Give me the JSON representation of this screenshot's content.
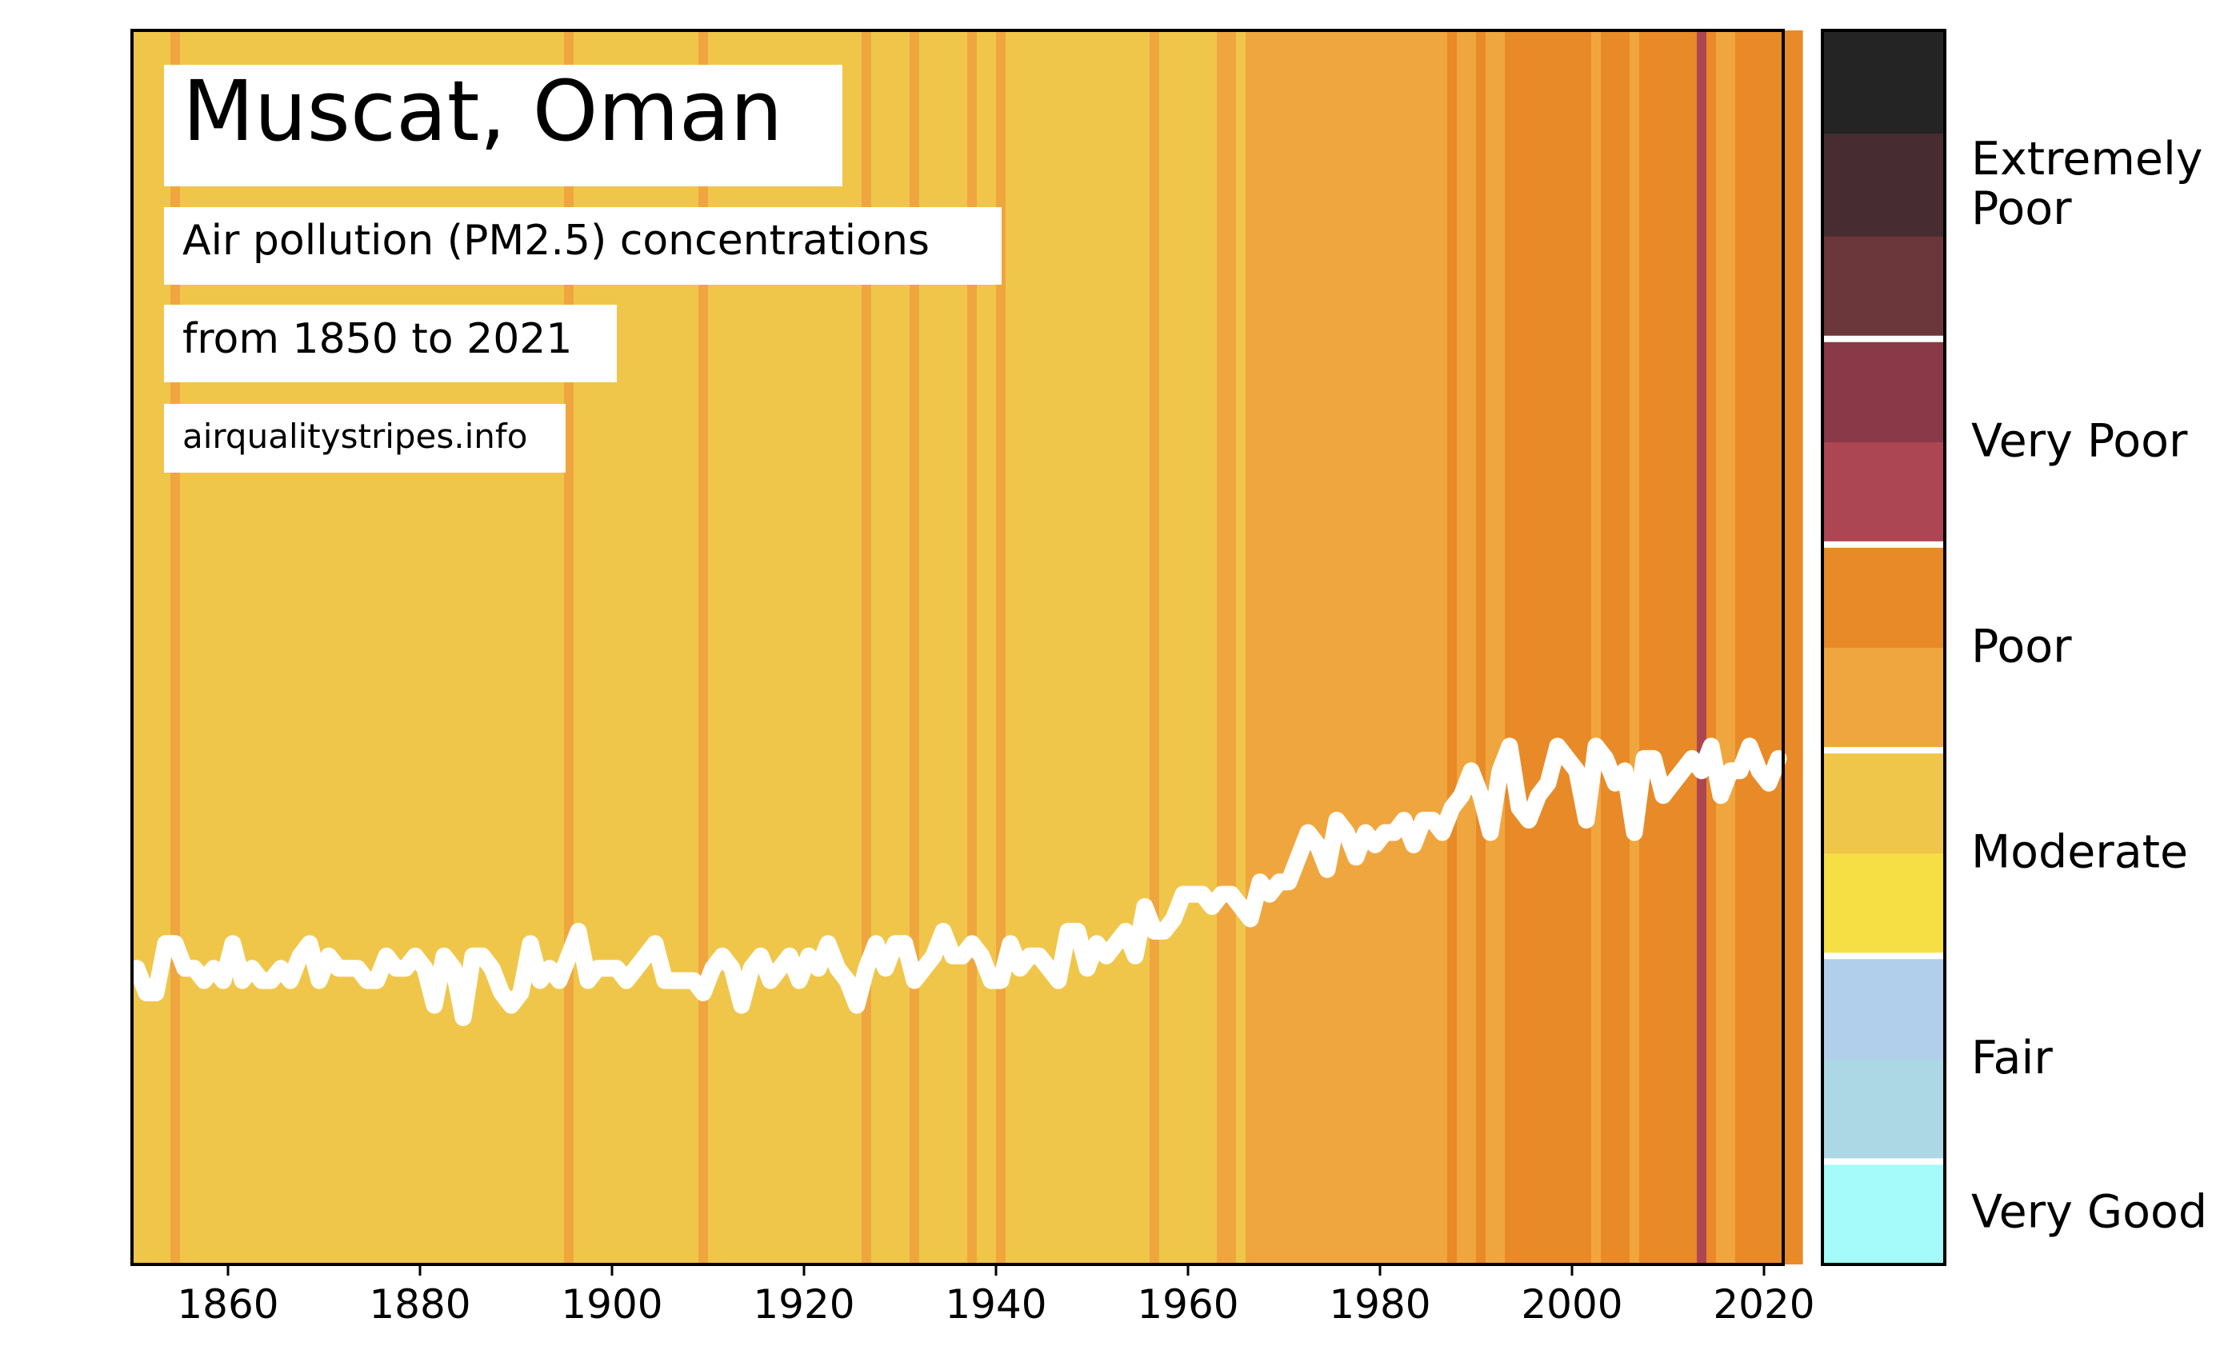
{
  "chart_data": {
    "type": "line",
    "title": "Muscat, Oman",
    "subtitle_line1": "Air pollution (PM2.5) concentrations",
    "subtitle_line2": "from 1850 to 2021",
    "source": "airqualitystripes.info",
    "xlabel": "",
    "ylabel": "",
    "xlim": [
      1850,
      2022
    ],
    "x_ticks": [
      1860,
      1880,
      1900,
      1920,
      1940,
      1960,
      1980,
      2000,
      2020
    ],
    "relative_ylim": [
      0,
      100
    ],
    "x_start": 1850,
    "relative_values": [
      24,
      22,
      22,
      26,
      26,
      24,
      24,
      23,
      24,
      23,
      26,
      23,
      24,
      23,
      23,
      24,
      23,
      25,
      26,
      23,
      25,
      24,
      24,
      24,
      23,
      23,
      25,
      24,
      24,
      25,
      24,
      21,
      25,
      24,
      20,
      25,
      25,
      24,
      22,
      21,
      22,
      26,
      23,
      24,
      23,
      25,
      27,
      23,
      24,
      24,
      24,
      23,
      24,
      25,
      26,
      23,
      23,
      23,
      23,
      22,
      24,
      25,
      24,
      21,
      24,
      25,
      23,
      24,
      25,
      23,
      25,
      24,
      26,
      24,
      23,
      21,
      24,
      26,
      24,
      26,
      26,
      23,
      24,
      25,
      27,
      25,
      25,
      26,
      25,
      23,
      23,
      26,
      24,
      25,
      25,
      24,
      23,
      27,
      27,
      24,
      26,
      25,
      26,
      27,
      25,
      29,
      27,
      27,
      28,
      30,
      30,
      30,
      29,
      30,
      30,
      29,
      28,
      31,
      30,
      31,
      31,
      33,
      35,
      34,
      32,
      36,
      35,
      33,
      35,
      34,
      35,
      35,
      36,
      34,
      36,
      36,
      35,
      37,
      38,
      40,
      38,
      35,
      40,
      42,
      37,
      36,
      38,
      39,
      42,
      41,
      40,
      36,
      42,
      41,
      39,
      40,
      35,
      41,
      41,
      38,
      39,
      40,
      41,
      40,
      42,
      38,
      40,
      40,
      42,
      40,
      39,
      41
    ],
    "stripe_categories": [
      "moderate-light",
      "moderate-light",
      "moderate-light",
      "moderate-light",
      "poor-light",
      "moderate-light",
      "moderate-light",
      "moderate-light",
      "moderate-light",
      "moderate-light",
      "moderate-light",
      "moderate-light",
      "moderate-light",
      "moderate-light",
      "moderate-light",
      "moderate-light",
      "moderate-light",
      "moderate-light",
      "moderate-light",
      "moderate-light",
      "moderate-light",
      "moderate-light",
      "moderate-light",
      "moderate-light",
      "moderate-light",
      "moderate-light",
      "moderate-light",
      "moderate-light",
      "moderate-light",
      "moderate-light",
      "moderate-light",
      "moderate-light",
      "moderate-light",
      "moderate-light",
      "moderate-light",
      "moderate-light",
      "moderate-light",
      "moderate-light",
      "moderate-light",
      "moderate-light",
      "moderate-light",
      "moderate-light",
      "moderate-light",
      "moderate-light",
      "moderate-light",
      "poor-light",
      "moderate-light",
      "moderate-light",
      "moderate-light",
      "moderate-light",
      "moderate-light",
      "moderate-light",
      "moderate-light",
      "moderate-light",
      "moderate-light",
      "moderate-light",
      "moderate-light",
      "moderate-light",
      "moderate-light",
      "poor-light",
      "moderate-light",
      "moderate-light",
      "moderate-light",
      "moderate-light",
      "moderate-light",
      "moderate-light",
      "moderate-light",
      "moderate-light",
      "moderate-light",
      "moderate-light",
      "moderate-light",
      "moderate-light",
      "moderate-light",
      "moderate-light",
      "moderate-light",
      "moderate-light",
      "poor-light",
      "moderate-light",
      "moderate-light",
      "moderate-light",
      "moderate-light",
      "poor-light",
      "moderate-light",
      "moderate-light",
      "moderate-light",
      "moderate-light",
      "moderate-light",
      "poor-light",
      "moderate-light",
      "moderate-light",
      "poor-light",
      "moderate-light",
      "moderate-light",
      "moderate-light",
      "moderate-light",
      "moderate-light",
      "moderate-light",
      "moderate-light",
      "moderate-light",
      "moderate-light",
      "moderate-light",
      "moderate-light",
      "moderate-light",
      "moderate-light",
      "moderate-light",
      "moderate-light",
      "poor-light",
      "moderate-light",
      "moderate-light",
      "moderate-light",
      "moderate-light",
      "moderate-light",
      "moderate-light",
      "poor-light",
      "poor-light",
      "moderate-light",
      "poor-light",
      "poor-light",
      "poor-light",
      "poor-light",
      "poor-light",
      "poor-light",
      "poor-light",
      "poor-light",
      "poor-light",
      "poor-light",
      "poor-light",
      "poor-light",
      "poor-light",
      "poor-light",
      "poor-light",
      "poor-light",
      "poor-light",
      "poor-light",
      "poor-light",
      "poor-light",
      "poor-light",
      "poor-dark",
      "poor-light",
      "poor-light",
      "poor-dark",
      "poor-light",
      "poor-light",
      "poor-dark",
      "poor-dark",
      "poor-dark",
      "poor-dark",
      "poor-dark",
      "poor-dark",
      "poor-dark",
      "poor-dark",
      "poor-dark",
      "poor-light",
      "poor-dark",
      "poor-dark",
      "poor-dark",
      "poor-light",
      "poor-dark",
      "poor-dark",
      "poor-dark",
      "poor-dark",
      "poor-dark",
      "poor-dark",
      "verypoor-light",
      "poor-dark",
      "poor-light",
      "poor-light",
      "poor-dark",
      "poor-dark",
      "poor-dark",
      "poor-dark",
      "poor-dark",
      "poor-dark",
      "poor-dark"
    ],
    "legend": [
      {
        "category": "Very Good",
        "colors": [
          "#a5fafa"
        ]
      },
      {
        "category": "Fair",
        "colors": [
          "#acd7e5",
          "#b1cfeb"
        ]
      },
      {
        "category": "Moderate",
        "colors": [
          "#f6de45",
          "#f0c64a"
        ]
      },
      {
        "category": "Poor",
        "colors": [
          "#f0a63f",
          "#e88a27"
        ]
      },
      {
        "category": "Very Poor",
        "colors": [
          "#ad4653",
          "#8a3948"
        ]
      },
      {
        "category": "Extremely Poor",
        "label_lines": [
          "Extremely",
          "Poor"
        ],
        "colors": [
          "#6b373b",
          "#472d31",
          "#242424"
        ]
      }
    ],
    "stripe_colors": {
      "moderate-light": "#f0c64a",
      "poor-light": "#f0a63f",
      "poor-dark": "#e88a27",
      "verypoor-light": "#ad4653"
    },
    "line_color": "#ffffff",
    "grid": false
  }
}
